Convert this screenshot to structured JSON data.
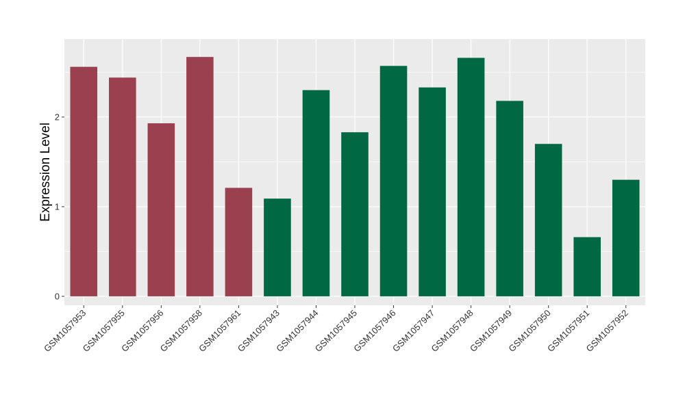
{
  "chart_data": {
    "type": "bar",
    "ylabel": "Expression Level",
    "xlabel": "",
    "title": "",
    "ylim": [
      -0.1,
      2.87
    ],
    "yticks": [
      0,
      1,
      2
    ],
    "grid": true,
    "legend": "none",
    "background": "#EBEBEB",
    "gridline_color": "#FFFFFF",
    "categories": [
      "GSM1057953",
      "GSM1057955",
      "GSM1057956",
      "GSM1057958",
      "GSM1057961",
      "GSM1057943",
      "GSM1057944",
      "GSM1057945",
      "GSM1057946",
      "GSM1057947",
      "GSM1057948",
      "GSM1057949",
      "GSM1057950",
      "GSM1057951",
      "GSM1057952"
    ],
    "values": [
      2.56,
      2.44,
      1.93,
      2.67,
      1.21,
      1.09,
      2.3,
      1.83,
      2.57,
      2.33,
      2.66,
      2.18,
      1.7,
      0.66,
      1.3
    ],
    "groups": [
      "g1",
      "g1",
      "g1",
      "g1",
      "g1",
      "g2",
      "g2",
      "g2",
      "g2",
      "g2",
      "g2",
      "g2",
      "g2",
      "g2",
      "g2"
    ],
    "group_colors": {
      "g1": "#9A404F",
      "g2": "#006944"
    }
  }
}
